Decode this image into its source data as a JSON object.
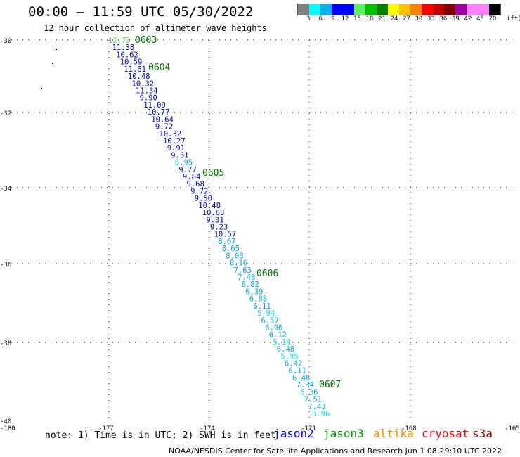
{
  "header": {
    "title": "00:00 – 11:59 UTC 05/30/2022",
    "subtitle": "12 hour collection of altimeter wave heights"
  },
  "legend": {
    "unit": "(ft)",
    "colors": [
      "#808080",
      "#00ffff",
      "#00b0f0",
      "#0000ff",
      "#0000ff",
      "#60f060",
      "#00c000",
      "#008000",
      "#ffff00",
      "#ffc000",
      "#ff8000",
      "#ff0000",
      "#c00000",
      "#800000",
      "#a000a0",
      "#ff80ff",
      "#ff80ff",
      "#000000"
    ],
    "ticks": [
      "3",
      "6",
      "9",
      "12",
      "15",
      "18",
      "21",
      "24",
      "27",
      "30",
      "33",
      "36",
      "39",
      "42",
      "45",
      "70"
    ]
  },
  "axes": {
    "x_ticks": [
      "-180",
      "-177",
      "-174",
      "-171",
      "-168",
      "-165"
    ],
    "y_ticks": [
      "-30",
      "-32",
      "-34",
      "-36",
      "-38",
      "-40"
    ]
  },
  "time_labels": [
    "0603",
    "0604",
    "0605",
    "0606",
    "0607"
  ],
  "track_colors": {
    "dark": "#0000c0",
    "light": "#00a8e0",
    "pale": "#00e0f0",
    "green": "#60e060"
  },
  "observations": [
    {
      "v": "12.73",
      "c": "green"
    },
    {
      "v": "11.38",
      "c": "dark"
    },
    {
      "v": "10.62",
      "c": "dark"
    },
    {
      "v": "10.59",
      "c": "dark"
    },
    {
      "v": "11.61",
      "c": "dark"
    },
    {
      "v": "10.48",
      "c": "dark"
    },
    {
      "v": "10.32",
      "c": "dark"
    },
    {
      "v": "11.34",
      "c": "dark"
    },
    {
      "v": "9.90",
      "c": "dark"
    },
    {
      "v": "11.09",
      "c": "dark"
    },
    {
      "v": "10.77",
      "c": "dark"
    },
    {
      "v": "10.64",
      "c": "dark"
    },
    {
      "v": "9.72",
      "c": "dark"
    },
    {
      "v": "10.32",
      "c": "dark"
    },
    {
      "v": "10.27",
      "c": "dark"
    },
    {
      "v": "9.91",
      "c": "dark"
    },
    {
      "v": "9.31",
      "c": "dark"
    },
    {
      "v": "8.95",
      "c": "light"
    },
    {
      "v": "9.77",
      "c": "dark"
    },
    {
      "v": "9.84",
      "c": "dark"
    },
    {
      "v": "9.68",
      "c": "dark"
    },
    {
      "v": "9.72",
      "c": "dark"
    },
    {
      "v": "9.50",
      "c": "dark"
    },
    {
      "v": "10.48",
      "c": "dark"
    },
    {
      "v": "10.63",
      "c": "dark"
    },
    {
      "v": "9.31",
      "c": "dark"
    },
    {
      "v": "9.23",
      "c": "dark"
    },
    {
      "v": "10.57",
      "c": "dark"
    },
    {
      "v": "8.67",
      "c": "light"
    },
    {
      "v": "8.65",
      "c": "light"
    },
    {
      "v": "8.08",
      "c": "light"
    },
    {
      "v": "8.16",
      "c": "light"
    },
    {
      "v": "7.63",
      "c": "light"
    },
    {
      "v": "7.48",
      "c": "light"
    },
    {
      "v": "6.82",
      "c": "light"
    },
    {
      "v": "6.39",
      "c": "light"
    },
    {
      "v": "6.88",
      "c": "light"
    },
    {
      "v": "6.11",
      "c": "light"
    },
    {
      "v": "5.94",
      "c": "pale"
    },
    {
      "v": "6.57",
      "c": "light"
    },
    {
      "v": "6.96",
      "c": "light"
    },
    {
      "v": "6.12",
      "c": "light"
    },
    {
      "v": "5.14",
      "c": "pale"
    },
    {
      "v": "6.48",
      "c": "light"
    },
    {
      "v": "5.95",
      "c": "pale"
    },
    {
      "v": "6.42",
      "c": "light"
    },
    {
      "v": "6.11",
      "c": "light"
    },
    {
      "v": "6.48",
      "c": "light"
    },
    {
      "v": "7.34",
      "c": "light"
    },
    {
      "v": "6.36",
      "c": "light"
    },
    {
      "v": "7.51",
      "c": "light"
    },
    {
      "v": "7.43",
      "c": "light"
    },
    {
      "v": "5.96",
      "c": "pale"
    }
  ],
  "footer": {
    "note": "note: 1) Time is in UTC; 2) SWH is in feet",
    "satellites": [
      {
        "name": "jason2",
        "color": "#0000ff"
      },
      {
        "name": "jason3",
        "color": "#00a000"
      },
      {
        "name": "altika",
        "color": "#ff8c00"
      },
      {
        "name": "cryosat",
        "color": "#ff0000"
      },
      {
        "name": "s3a",
        "color": "#800000"
      }
    ],
    "credit": "NOAA/NESDIS Center for Satellite Applications and Research    Jun  1 08:29:10 UTC 2022"
  }
}
